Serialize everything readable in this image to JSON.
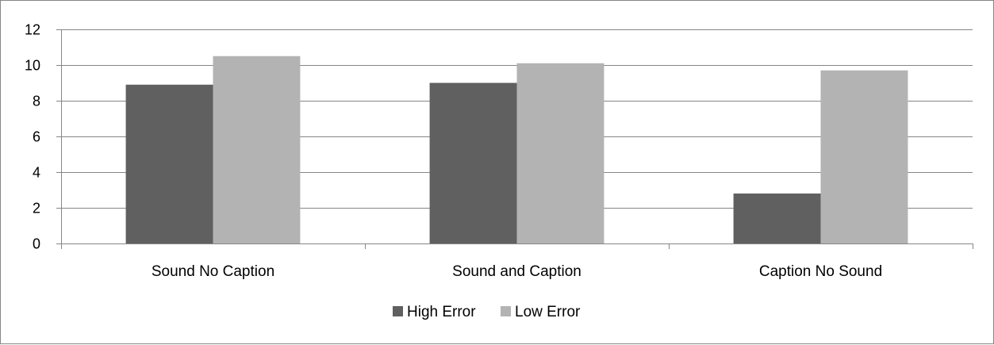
{
  "chart_data": {
    "type": "bar",
    "title": "",
    "xlabel": "",
    "ylabel": "",
    "categories": [
      "Sound No Caption",
      "Sound and Caption",
      "Caption No Sound"
    ],
    "series": [
      {
        "name": "High Error",
        "color": "#606060",
        "values": [
          8.9,
          9.0,
          2.8
        ]
      },
      {
        "name": "Low Error",
        "color": "#b3b3b3",
        "values": [
          10.5,
          10.1,
          9.7
        ]
      }
    ],
    "ylim": [
      0,
      12
    ],
    "yticks": [
      0,
      2,
      4,
      6,
      8,
      10,
      12
    ],
    "grid": true,
    "legend_position": "bottom"
  }
}
